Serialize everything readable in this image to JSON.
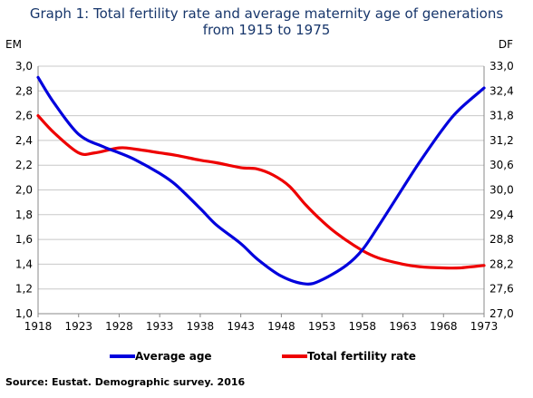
{
  "title_line1": "Graph 1: Total fertility rate and average maternity age of generations",
  "title_line2": "from 1915 to 1975",
  "source": "Source: Eustat. Demographic survey. 2016",
  "colors": {
    "average_age": "#0000dd",
    "fertility": "#ee0000",
    "title": "#17366b",
    "grid": "#c8c8c8"
  },
  "chart_data": {
    "type": "line",
    "title": "Graph 1: Total fertility rate and average maternity age of generations from 1915 to 1975",
    "left_axis_label": "EM",
    "right_axis_label": "DF",
    "x_ticks": [
      "1918",
      "1923",
      "1928",
      "1933",
      "1938",
      "1943",
      "1948",
      "1953",
      "1958",
      "1963",
      "1968",
      "1973"
    ],
    "xlim": [
      1918,
      1973
    ],
    "left_ylim": [
      1.0,
      3.0
    ],
    "left_ticks": [
      "1,0",
      "1,2",
      "1,4",
      "1,6",
      "1,8",
      "2,0",
      "2,2",
      "2,4",
      "2,6",
      "2,8",
      "3,0"
    ],
    "right_ylim": [
      27.0,
      33.0
    ],
    "right_ticks": [
      "27,0",
      "27,6",
      "28,2",
      "28,8",
      "29,4",
      "30,0",
      "30,6",
      "31,2",
      "31,8",
      "32,4",
      "33,0"
    ],
    "legend_position": "bottom",
    "grid": true,
    "series": [
      {
        "name": "Average age",
        "axis": "right",
        "x": [
          1918,
          1920,
          1923,
          1926,
          1928,
          1930,
          1933,
          1935,
          1938,
          1940,
          1943,
          1945,
          1948,
          1951,
          1953,
          1956,
          1958,
          1960,
          1963,
          1965,
          1968,
          1970,
          1973
        ],
        "values": [
          32.73,
          32.1,
          31.35,
          31.05,
          30.9,
          30.73,
          30.4,
          30.12,
          29.55,
          29.15,
          28.7,
          28.33,
          27.91,
          27.72,
          27.82,
          28.17,
          28.55,
          29.13,
          30.05,
          30.66,
          31.5,
          31.96,
          32.47
        ]
      },
      {
        "name": "Total fertility rate",
        "axis": "left",
        "x": [
          1918,
          1920,
          1923,
          1925,
          1928,
          1930,
          1933,
          1935,
          1938,
          1940,
          1943,
          1945,
          1947,
          1949,
          1951,
          1953,
          1955,
          1958,
          1960,
          1963,
          1965,
          1968,
          1970,
          1973
        ],
        "values": [
          2.6,
          2.46,
          2.3,
          2.3,
          2.34,
          2.33,
          2.3,
          2.28,
          2.24,
          2.22,
          2.18,
          2.17,
          2.12,
          2.03,
          1.88,
          1.75,
          1.64,
          1.51,
          1.45,
          1.4,
          1.38,
          1.37,
          1.37,
          1.39
        ]
      }
    ]
  }
}
